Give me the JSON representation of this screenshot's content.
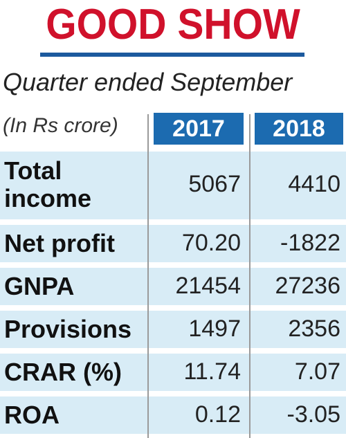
{
  "header": {
    "title": "GOOD SHOW",
    "subtitle": "Quarter ended September",
    "units": "(In Rs crore)"
  },
  "colors": {
    "title": "#d0112b",
    "title_rule": "#1c5a9e",
    "year_tab": "#1c6bb0",
    "row_band": "#d8ecf6",
    "divider": "#9a9a9a"
  },
  "chart_data": {
    "type": "table",
    "columns": [
      "2017",
      "2018"
    ],
    "rows": [
      {
        "label": "Total income",
        "values": [
          "5067",
          "4410"
        ]
      },
      {
        "label": "Net profit",
        "values": [
          "70.20",
          "-1822"
        ]
      },
      {
        "label": "GNPA",
        "values": [
          "21454",
          "27236"
        ]
      },
      {
        "label": "Provisions",
        "values": [
          "1497",
          "2356"
        ]
      },
      {
        "label": "CRAR (%)",
        "values": [
          "11.74",
          "7.07"
        ]
      },
      {
        "label": "ROA",
        "values": [
          "0.12",
          "-3.05"
        ]
      }
    ]
  }
}
